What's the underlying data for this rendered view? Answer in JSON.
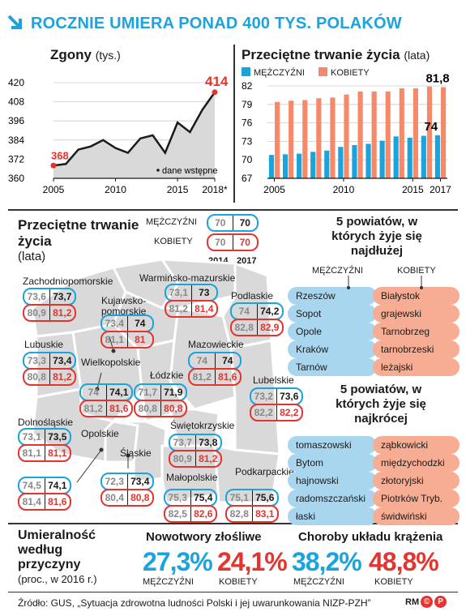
{
  "title": "ROCZNIE UMIERA PONAD 400 TYS. POLAKÓW",
  "colors": {
    "blue": "#1aa3dc",
    "red": "#e3342f",
    "lightblue": "#a9d6ef",
    "salmon": "#f6ad93",
    "gray": "#d9d9d9"
  },
  "deaths": {
    "title": "Zgony",
    "unit": "(tys.)",
    "note": "dane wstępne",
    "first_label": "368",
    "last_label": "414",
    "chart_data": {
      "type": "area",
      "x": [
        2005,
        2006,
        2007,
        2008,
        2009,
        2010,
        2011,
        2012,
        2013,
        2014,
        2015,
        2016,
        2017,
        2018
      ],
      "values": [
        368,
        369,
        378,
        380,
        384,
        379,
        376,
        385,
        387,
        376,
        395,
        389,
        403,
        414
      ],
      "yticks": [
        "420",
        "408",
        "396",
        "384",
        "372",
        "360"
      ],
      "xticks": [
        "2005",
        "2010",
        "2015",
        "2018*"
      ],
      "ylim": [
        360,
        420
      ]
    }
  },
  "life": {
    "title": "Przeciętne trwanie życia",
    "unit": "(lata)",
    "legend": {
      "men": "MĘŻCZYŹNI",
      "women": "KOBIETY"
    },
    "last_women": "81,8",
    "last_men": "74",
    "chart_data": {
      "type": "bar",
      "x": [
        2005,
        2006,
        2007,
        2008,
        2009,
        2010,
        2011,
        2012,
        2013,
        2014,
        2015,
        2016,
        2017
      ],
      "series": [
        {
          "name": "MĘŻCZYŹNI",
          "values": [
            70.8,
            70.9,
            71.0,
            71.3,
            71.5,
            72.1,
            72.4,
            72.6,
            73.1,
            73.8,
            73.6,
            73.9,
            74.0
          ]
        },
        {
          "name": "KOBIETY",
          "values": [
            79.4,
            79.6,
            79.7,
            80.0,
            80.1,
            80.6,
            81.1,
            81.1,
            81.1,
            81.6,
            81.6,
            81.9,
            81.8
          ]
        }
      ],
      "yticks": [
        "82",
        "79",
        "76",
        "73",
        "70",
        "67"
      ],
      "xticks": [
        "2005",
        "2010",
        "2015",
        "2017"
      ],
      "ylim": [
        67,
        82
      ]
    }
  },
  "map": {
    "title": "Przeciętne trwanie życia",
    "unit": "(lata)",
    "legend": {
      "men": "MĘŻCZYŹNI",
      "women": "KOBIETY",
      "m_a": "70",
      "m_b": "70",
      "k_a": "70",
      "k_b": "70",
      "y1": "2014",
      "y2": "2017"
    },
    "regions": [
      {
        "name": "Zachodniopomorskie",
        "m": [
          "73,6",
          "73,7"
        ],
        "k": [
          "80,9",
          "81,2"
        ]
      },
      {
        "name": "Warmińsko-mazurskie",
        "m": [
          "73,1",
          "73"
        ],
        "k": [
          "81,2",
          "81,4"
        ]
      },
      {
        "name": "Kujawsko-pomorskie",
        "m": [
          "73,4",
          "74"
        ],
        "k": [
          "81,1",
          "81"
        ]
      },
      {
        "name": "Podlaskie",
        "m": [
          "74",
          "74,2"
        ],
        "k": [
          "82,8",
          "82,9"
        ]
      },
      {
        "name": "Lubuskie",
        "m": [
          "73,3",
          "73,4"
        ],
        "k": [
          "80,8",
          "81,2"
        ]
      },
      {
        "name": "Mazowieckie",
        "m": [
          "74",
          "74"
        ],
        "k": [
          "81,2",
          "81,6"
        ]
      },
      {
        "name": "Wielkopolskie",
        "m": [
          "74",
          "74,1"
        ],
        "k": [
          "81,2",
          "81,6"
        ]
      },
      {
        "name": "Łódzkie",
        "m": [
          "71,7",
          "71,9"
        ],
        "k": [
          "80,8",
          "80,8"
        ]
      },
      {
        "name": "Lubelskie",
        "m": [
          "73,2",
          "73,6"
        ],
        "k": [
          "82,2",
          "82,2"
        ]
      },
      {
        "name": "Dolnośląskie",
        "m": [
          "73,1",
          "73,5"
        ],
        "k": [
          "81,1",
          "81,1"
        ]
      },
      {
        "name": "Świętokrzyskie",
        "m": [
          "73,7",
          "73,8"
        ],
        "k": [
          "80,9",
          "81,2"
        ]
      },
      {
        "name": "Opolskie",
        "m": [
          "74,5",
          "74,1"
        ],
        "k": [
          "81,4",
          "81,6"
        ]
      },
      {
        "name": "Śląskie",
        "m": [
          "72,3",
          "73,4"
        ],
        "k": [
          "80,4",
          "80,8"
        ]
      },
      {
        "name": "Małopolskie",
        "m": [
          "75,3",
          "75,4"
        ],
        "k": [
          "82,5",
          "82,6"
        ]
      },
      {
        "name": "Podkarpackie",
        "m": [
          "75,1",
          "75,6"
        ],
        "k": [
          "82,8",
          "83,1"
        ]
      }
    ]
  },
  "longest": {
    "title": "5 powiatów, w których żyje się najdłużej",
    "men_label": "MĘŻCZYŹNI",
    "women_label": "KOBIETY",
    "men": [
      "Rzeszów",
      "Sopot",
      "Opole",
      "Kraków",
      "Tarnów"
    ],
    "women": [
      "Białystok",
      "grajewski",
      "Tarnobrzeg",
      "tarnobrzeski",
      "leżajski"
    ]
  },
  "shortest": {
    "title": "5 powiatów, w których żyje się najkrócej",
    "men": [
      "tomaszowski",
      "Bytom",
      "hajnowski",
      "radomszczański",
      "łaski"
    ],
    "women": [
      "ząbkowicki",
      "międzychodzki",
      "złotoryjski",
      "Piotrków Tryb.",
      "świdwiński"
    ]
  },
  "causes": {
    "title": "Umieralność według przyczyny",
    "subtitle": "(proc., w 2016 r.)",
    "cancer": {
      "label": "Nowotwory złośliwe",
      "men": "27,3%",
      "women": "24,1%"
    },
    "cardio": {
      "label": "Choroby układu krążenia",
      "men": "38,2%",
      "women": "48,8%"
    },
    "men_label": "MĘŻCZYŹNI",
    "women_label": "KOBIETY"
  },
  "source": "Źródło: GUS, „Sytuacja zdrowotna ludności Polski i jej uwarunkowania NIZP-PZH”",
  "logo": "RM"
}
